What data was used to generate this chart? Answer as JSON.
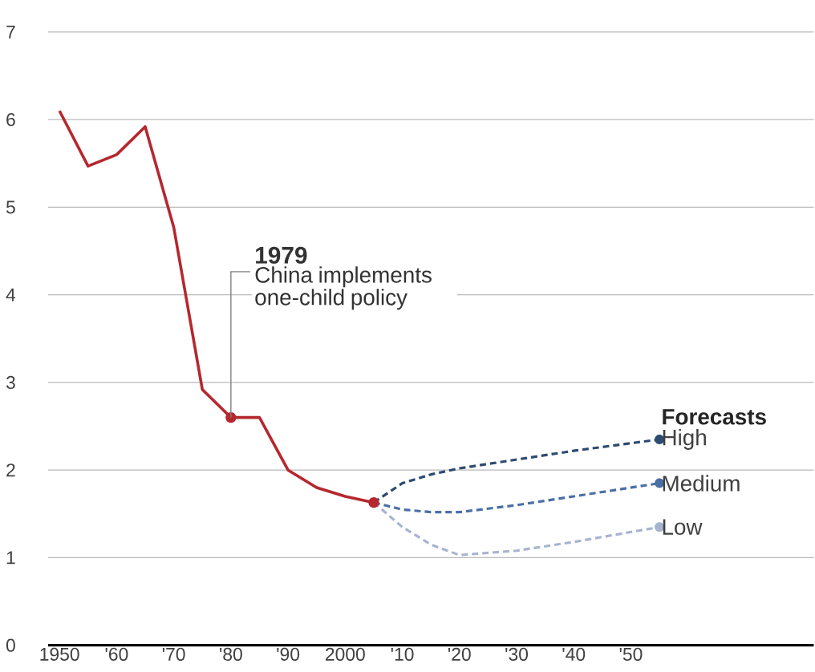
{
  "chart_data": {
    "type": "line",
    "xlim": [
      1948,
      2082
    ],
    "ylim": [
      0,
      7
    ],
    "xticks": [
      1950,
      {
        "value": 1960,
        "label": "'60"
      },
      {
        "value": 1970,
        "label": "'70"
      },
      {
        "value": 1980,
        "label": "'80"
      },
      {
        "value": 1990,
        "label": "'90"
      },
      2000,
      {
        "value": 2010,
        "label": "'10"
      },
      {
        "value": 2020,
        "label": "'20"
      },
      {
        "value": 2030,
        "label": "'30"
      },
      {
        "value": 2040,
        "label": "'40"
      },
      {
        "value": 2050,
        "label": "'50"
      }
    ],
    "yticks": [
      0,
      1,
      2,
      3,
      4,
      5,
      6,
      7
    ],
    "grid": "y",
    "legend_title": "Forecasts",
    "series": [
      {
        "color": "#b5282e",
        "line_style": "solid",
        "x": [
          1950,
          1955,
          1960,
          1965,
          1970,
          1975,
          1980,
          1985,
          1990,
          1995,
          2000,
          2005
        ],
        "values": [
          6.1,
          5.47,
          5.6,
          5.92,
          4.77,
          2.92,
          2.6,
          2.6,
          2.0,
          1.8,
          1.7,
          1.63
        ]
      },
      {
        "name": "High",
        "color": "#2d4a72",
        "line_style": "dashed",
        "x": [
          2005,
          2010,
          2015,
          2020,
          2030,
          2040,
          2055
        ],
        "values": [
          1.63,
          1.85,
          1.95,
          2.02,
          2.12,
          2.22,
          2.35
        ]
      },
      {
        "name": "Medium",
        "color": "#4a6fa5",
        "line_style": "dashed",
        "x": [
          2005,
          2010,
          2015,
          2020,
          2030,
          2040,
          2055
        ],
        "values": [
          1.63,
          1.55,
          1.52,
          1.52,
          1.6,
          1.7,
          1.85
        ]
      },
      {
        "name": "Low",
        "color": "#a6b4cf",
        "line_style": "dashed",
        "x": [
          2005,
          2010,
          2015,
          2020,
          2030,
          2040,
          2055
        ],
        "values": [
          1.63,
          1.35,
          1.15,
          1.03,
          1.08,
          1.18,
          1.35
        ]
      }
    ],
    "annotations": [
      {
        "text": "1979",
        "x": 1980,
        "y": 2.6
      },
      "China implements one-child policy"
    ]
  }
}
